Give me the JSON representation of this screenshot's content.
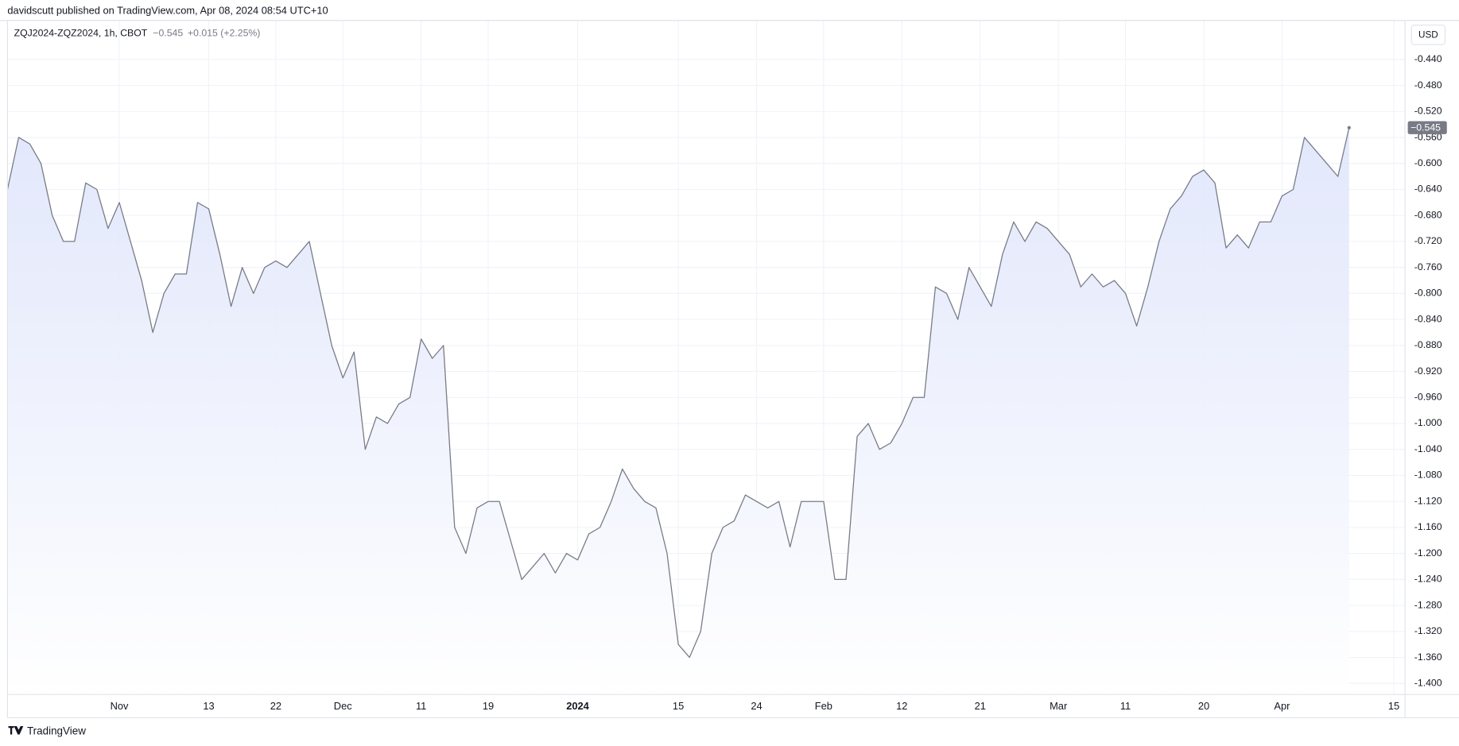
{
  "header": {
    "text": "davidscutt published on TradingView.com, Apr 08, 2024 08:54 UTC+10"
  },
  "legend": {
    "last": "−0.545",
    "change": "+0.015 (+2.25%)"
  },
  "currency": "USD",
  "footer": {
    "brand": "TradingView"
  },
  "chart_data": {
    "type": "area",
    "series": [
      {
        "name": "ZQJ2024-ZQZ2024, 1h, CBOT",
        "color": "#787b86",
        "fill": "#dfe5fb",
        "values": [
          -0.64,
          -0.56,
          -0.57,
          -0.6,
          -0.68,
          -0.72,
          -0.72,
          -0.63,
          -0.64,
          -0.7,
          -0.66,
          -0.72,
          -0.78,
          -0.86,
          -0.8,
          -0.77,
          -0.77,
          -0.66,
          -0.67,
          -0.74,
          -0.82,
          -0.76,
          -0.8,
          -0.76,
          -0.75,
          -0.76,
          -0.74,
          -0.72,
          -0.8,
          -0.88,
          -0.93,
          -0.89,
          -1.04,
          -0.99,
          -1.0,
          -0.97,
          -0.96,
          -0.87,
          -0.9,
          -0.88,
          -1.16,
          -1.2,
          -1.13,
          -1.12,
          -1.12,
          -1.18,
          -1.24,
          -1.22,
          -1.2,
          -1.23,
          -1.2,
          -1.21,
          -1.17,
          -1.16,
          -1.12,
          -1.07,
          -1.1,
          -1.12,
          -1.13,
          -1.2,
          -1.34,
          -1.36,
          -1.32,
          -1.2,
          -1.16,
          -1.15,
          -1.11,
          -1.12,
          -1.13,
          -1.12,
          -1.19,
          -1.12,
          -1.12,
          -1.12,
          -1.24,
          -1.24,
          -1.02,
          -1.0,
          -1.04,
          -1.03,
          -1.0,
          -0.96,
          -0.96,
          -0.79,
          -0.8,
          -0.84,
          -0.76,
          -0.79,
          -0.82,
          -0.74,
          -0.69,
          -0.72,
          -0.69,
          -0.7,
          -0.72,
          -0.74,
          -0.79,
          -0.77,
          -0.79,
          -0.78,
          -0.8,
          -0.85,
          -0.79,
          -0.72,
          -0.67,
          -0.65,
          -0.62,
          -0.61,
          -0.63,
          -0.73,
          -0.71,
          -0.73,
          -0.69,
          -0.69,
          -0.65,
          -0.64,
          -0.56,
          -0.58,
          -0.6,
          -0.62,
          -0.545
        ]
      }
    ],
    "xlim": [
      0,
      125
    ],
    "xticks": [
      {
        "value": 10,
        "label": "Nov"
      },
      {
        "value": 18,
        "label": "13"
      },
      {
        "value": 24,
        "label": "22"
      },
      {
        "value": 30,
        "label": "Dec"
      },
      {
        "value": 37,
        "label": "11"
      },
      {
        "value": 43,
        "label": "19"
      },
      {
        "value": 51,
        "label": "2024"
      },
      {
        "value": 60,
        "label": "15"
      },
      {
        "value": 67,
        "label": "24"
      },
      {
        "value": 73,
        "label": "Feb"
      },
      {
        "value": 80,
        "label": "12"
      },
      {
        "value": 87,
        "label": "21"
      },
      {
        "value": 94,
        "label": "Mar"
      },
      {
        "value": 100,
        "label": "11"
      },
      {
        "value": 107,
        "label": "20"
      },
      {
        "value": 114,
        "label": "Apr"
      },
      {
        "value": 124,
        "label": "15"
      }
    ],
    "ylim": [
      -1.417,
      -0.38
    ],
    "yticks": [
      {
        "value": -0.44,
        "label": "-0.440"
      },
      {
        "value": -0.48,
        "label": "-0.480"
      },
      {
        "value": -0.52,
        "label": "-0.520"
      },
      {
        "value": -0.56,
        "label": "-0.560"
      },
      {
        "value": -0.6,
        "label": "-0.600"
      },
      {
        "value": -0.64,
        "label": "-0.640"
      },
      {
        "value": -0.68,
        "label": "-0.680"
      },
      {
        "value": -0.72,
        "label": "-0.720"
      },
      {
        "value": -0.76,
        "label": "-0.760"
      },
      {
        "value": -0.8,
        "label": "-0.800"
      },
      {
        "value": -0.84,
        "label": "-0.840"
      },
      {
        "value": -0.88,
        "label": "-0.880"
      },
      {
        "value": -0.92,
        "label": "-0.920"
      },
      {
        "value": -0.96,
        "label": "-0.960"
      },
      {
        "value": -1.0,
        "label": "-1.000"
      },
      {
        "value": -1.04,
        "label": "-1.040"
      },
      {
        "value": -1.08,
        "label": "-1.080"
      },
      {
        "value": -1.12,
        "label": "-1.120"
      },
      {
        "value": -1.16,
        "label": "-1.160"
      },
      {
        "value": -1.2,
        "label": "-1.200"
      },
      {
        "value": -1.24,
        "label": "-1.240"
      },
      {
        "value": -1.28,
        "label": "-1.280"
      },
      {
        "value": -1.32,
        "label": "-1.320"
      },
      {
        "value": -1.36,
        "label": "-1.360"
      },
      {
        "value": -1.4,
        "label": "-1.400"
      }
    ],
    "grid": true
  }
}
